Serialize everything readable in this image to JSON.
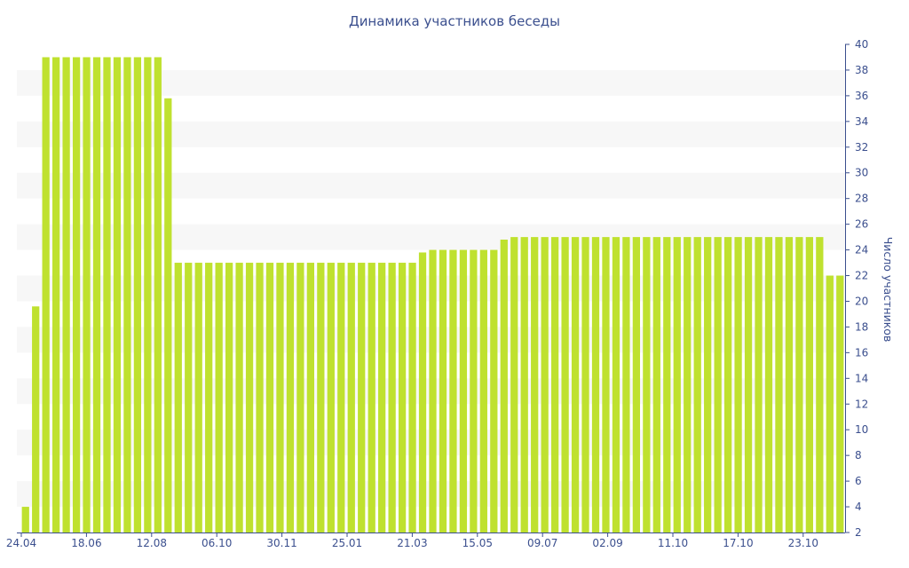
{
  "chart_data": {
    "type": "bar",
    "title": "Динамика участников беседы",
    "ylabel": "Число участников",
    "xlabel": "",
    "ylim": [
      2,
      40
    ],
    "y_ticks": [
      2,
      4,
      6,
      8,
      10,
      12,
      14,
      16,
      18,
      20,
      22,
      24,
      26,
      28,
      30,
      32,
      34,
      36,
      38,
      40
    ],
    "y_axis_position": "right",
    "grid": "alternating horizontal bands",
    "x_tick_labels": [
      "24.04",
      "18.06",
      "12.08",
      "06.10",
      "30.11",
      "25.01",
      "21.03",
      "15.05",
      "09.07",
      "02.09",
      "11.10",
      "17.10",
      "23.10"
    ],
    "bar_color": "#bfe12f",
    "values": [
      4,
      19.6,
      39,
      39,
      39,
      39,
      39,
      39,
      39,
      39,
      39,
      39,
      39,
      39,
      35.8,
      23,
      23,
      23,
      23,
      23,
      23,
      23,
      23,
      23,
      23,
      23,
      23,
      23,
      23,
      23,
      23,
      23,
      23,
      23,
      23,
      23,
      23,
      23,
      23,
      23.8,
      24,
      24,
      24,
      24,
      24,
      24,
      24,
      24.8,
      25,
      25,
      25,
      25,
      25,
      25,
      25,
      25,
      25,
      25,
      25,
      25,
      25,
      25,
      25,
      25,
      25,
      25,
      25,
      25,
      25,
      25,
      25,
      25,
      25,
      25,
      25,
      25,
      25,
      25,
      25,
      22,
      22
    ]
  }
}
